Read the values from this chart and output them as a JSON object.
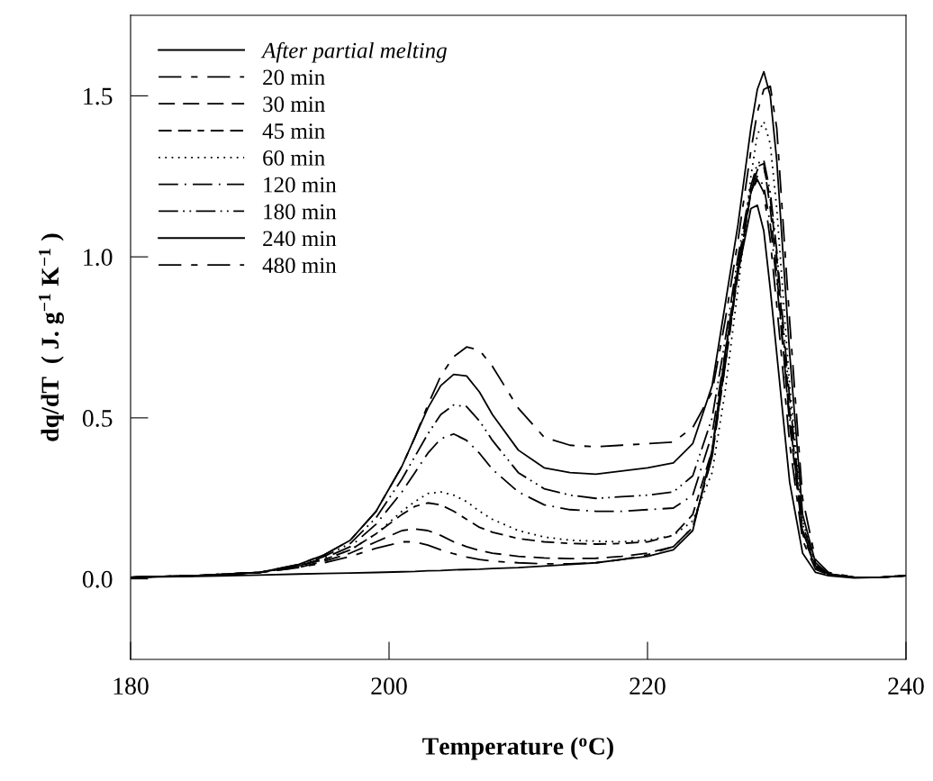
{
  "chart_data": {
    "type": "line",
    "xlabel": "Temperature ($^{o}$C)",
    "ylabel": "dq/dT  ( J. g$^{−1}$ K$^{−1}$ )",
    "x": [
      180,
      185,
      190,
      193,
      195,
      197,
      199,
      201,
      202,
      203,
      204,
      205,
      206,
      207,
      208,
      210,
      212,
      214,
      216,
      218,
      220,
      222,
      223.5,
      225,
      226,
      227,
      228,
      228.5,
      229,
      229.5,
      230,
      231,
      232,
      233,
      234,
      236,
      238,
      240
    ],
    "xlim": [
      180,
      240
    ],
    "xticks": [
      180,
      200,
      220,
      240
    ],
    "ylim": [
      -0.25,
      1.75
    ],
    "yticks": [
      {
        "value": 0,
        "label": "0.0"
      },
      {
        "value": 0.5,
        "label": "0.5"
      },
      {
        "value": 1,
        "label": "1.0"
      },
      {
        "value": 1.5,
        "label": "1.5"
      }
    ],
    "grid": false,
    "legend": "top left",
    "marker": "none",
    "series": [
      {
        "name": "After partial melting",
        "color": "#000000",
        "line_style": "solid",
        "values": [
          0.005,
          0.008,
          0.012,
          0.015,
          0.017,
          0.018,
          0.02,
          0.022,
          0.023,
          0.025,
          0.026,
          0.028,
          0.029,
          0.03,
          0.032,
          0.035,
          0.04,
          0.045,
          0.05,
          0.06,
          0.07,
          0.09,
          0.15,
          0.4,
          0.7,
          0.95,
          1.15,
          1.16,
          1.08,
          0.9,
          0.7,
          0.3,
          0.08,
          0.02,
          0.01,
          0.003,
          0.005,
          0.01
        ]
      },
      {
        "name": "20 min",
        "color": "#000000",
        "line_style": "longshort",
        "values": [
          0.005,
          0.01,
          0.02,
          0.035,
          0.05,
          0.07,
          0.095,
          0.115,
          0.115,
          0.105,
          0.09,
          0.078,
          0.068,
          0.06,
          0.055,
          0.05,
          0.047,
          0.047,
          0.05,
          0.06,
          0.075,
          0.1,
          0.16,
          0.38,
          0.68,
          0.97,
          1.2,
          1.24,
          1.2,
          1.05,
          0.85,
          0.42,
          0.12,
          0.03,
          0.012,
          0.005,
          0.005,
          0.01
        ]
      },
      {
        "name": "30 min",
        "color": "#000000",
        "line_style": "dashed",
        "values": [
          0.005,
          0.01,
          0.02,
          0.035,
          0.055,
          0.08,
          0.115,
          0.15,
          0.155,
          0.15,
          0.135,
          0.115,
          0.1,
          0.088,
          0.08,
          0.07,
          0.065,
          0.063,
          0.064,
          0.07,
          0.08,
          0.1,
          0.16,
          0.38,
          0.66,
          0.95,
          1.2,
          1.28,
          1.29,
          1.15,
          0.95,
          0.48,
          0.14,
          0.035,
          0.015,
          0.005,
          0.005,
          0.01
        ]
      },
      {
        "name": "45 min",
        "color": "#000000",
        "line_style": "mediumdash",
        "values": [
          0.005,
          0.01,
          0.02,
          0.04,
          0.06,
          0.09,
          0.14,
          0.2,
          0.225,
          0.236,
          0.23,
          0.21,
          0.185,
          0.16,
          0.145,
          0.125,
          0.115,
          0.11,
          0.108,
          0.11,
          0.115,
          0.135,
          0.2,
          0.4,
          0.66,
          0.95,
          1.2,
          1.27,
          1.28,
          1.18,
          1.0,
          0.52,
          0.15,
          0.04,
          0.015,
          0.005,
          0.005,
          0.01
        ]
      },
      {
        "name": "60 min",
        "color": "#000000",
        "line_style": "dotted",
        "values": [
          0.005,
          0.01,
          0.02,
          0.04,
          0.06,
          0.09,
          0.14,
          0.21,
          0.24,
          0.265,
          0.27,
          0.26,
          0.24,
          0.21,
          0.185,
          0.15,
          0.13,
          0.12,
          0.117,
          0.115,
          0.12,
          0.135,
          0.18,
          0.33,
          0.58,
          0.9,
          1.25,
          1.38,
          1.42,
          1.35,
          1.15,
          0.6,
          0.18,
          0.045,
          0.015,
          0.005,
          0.005,
          0.01
        ]
      },
      {
        "name": "120 min",
        "color": "#000000",
        "line_style": "dashdot",
        "values": [
          0.005,
          0.01,
          0.02,
          0.04,
          0.065,
          0.1,
          0.17,
          0.27,
          0.33,
          0.39,
          0.435,
          0.45,
          0.43,
          0.39,
          0.34,
          0.27,
          0.23,
          0.215,
          0.21,
          0.21,
          0.215,
          0.22,
          0.26,
          0.45,
          0.7,
          0.98,
          1.2,
          1.25,
          1.22,
          1.1,
          0.92,
          0.5,
          0.15,
          0.04,
          0.015,
          0.005,
          0.005,
          0.01
        ]
      },
      {
        "name": "180 min",
        "color": "#000000",
        "line_style": "dashdotdot",
        "values": [
          0.005,
          0.01,
          0.02,
          0.04,
          0.07,
          0.11,
          0.19,
          0.31,
          0.38,
          0.45,
          0.51,
          0.54,
          0.535,
          0.49,
          0.43,
          0.33,
          0.28,
          0.26,
          0.25,
          0.255,
          0.26,
          0.27,
          0.32,
          0.5,
          0.74,
          1.0,
          1.22,
          1.29,
          1.3,
          1.2,
          1.02,
          0.56,
          0.17,
          0.045,
          0.015,
          0.005,
          0.005,
          0.01
        ]
      },
      {
        "name": "240 min",
        "color": "#000000",
        "line_style": "solid",
        "values": [
          0.005,
          0.01,
          0.02,
          0.045,
          0.075,
          0.12,
          0.21,
          0.35,
          0.44,
          0.53,
          0.6,
          0.635,
          0.63,
          0.58,
          0.51,
          0.4,
          0.345,
          0.33,
          0.325,
          0.335,
          0.345,
          0.36,
          0.42,
          0.6,
          0.85,
          1.1,
          1.4,
          1.52,
          1.575,
          1.5,
          1.3,
          0.7,
          0.2,
          0.05,
          0.015,
          0.005,
          0.005,
          0.01
        ]
      },
      {
        "name": "480 min",
        "color": "#000000",
        "line_style": "longshort",
        "values": [
          0.005,
          0.01,
          0.02,
          0.045,
          0.075,
          0.12,
          0.21,
          0.35,
          0.44,
          0.54,
          0.63,
          0.69,
          0.72,
          0.71,
          0.66,
          0.53,
          0.44,
          0.415,
          0.41,
          0.415,
          0.42,
          0.425,
          0.47,
          0.58,
          0.8,
          1.05,
          1.33,
          1.45,
          1.52,
          1.53,
          1.4,
          0.8,
          0.25,
          0.06,
          0.02,
          0.005,
          0.005,
          0.01
        ]
      }
    ]
  }
}
